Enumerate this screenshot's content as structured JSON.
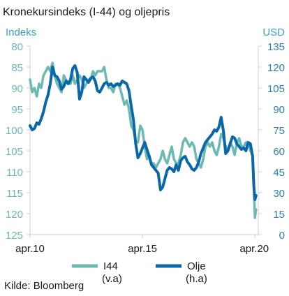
{
  "chart_data": {
    "type": "line",
    "title": "Kronekursindeks (I-44) og oljepris",
    "left_axis": {
      "label": "Indeks",
      "ticks": [
        80,
        85,
        90,
        95,
        100,
        105,
        110,
        115,
        120,
        125
      ],
      "range": [
        125,
        80
      ],
      "inverted": true,
      "color": "#6cb8b3"
    },
    "right_axis": {
      "label": "USD",
      "ticks": [
        0,
        15,
        30,
        45,
        60,
        75,
        90,
        105,
        120,
        135
      ],
      "range": [
        0,
        135
      ],
      "color": "#2b7fb0"
    },
    "x_axis": {
      "ticks": [
        "apr.10",
        "apr.15",
        "apr.20"
      ],
      "tick_values": [
        2010.25,
        2015.25,
        2020.25
      ],
      "range": [
        2010.25,
        2020.4
      ]
    },
    "grid": false,
    "legend_position": "bottom",
    "series": [
      {
        "name": "I44",
        "sub": "(v.a)",
        "axis": "left",
        "color": "#6cb8b3",
        "x": [
          2010.25,
          2010.35,
          2010.45,
          2010.55,
          2010.65,
          2010.75,
          2010.85,
          2010.95,
          2011.05,
          2011.15,
          2011.25,
          2011.35,
          2011.45,
          2011.55,
          2011.65,
          2011.75,
          2011.85,
          2011.95,
          2012.05,
          2012.15,
          2012.25,
          2012.35,
          2012.45,
          2012.55,
          2012.65,
          2012.75,
          2012.85,
          2012.95,
          2013.05,
          2013.15,
          2013.25,
          2013.35,
          2013.45,
          2013.55,
          2013.65,
          2013.75,
          2013.85,
          2013.95,
          2014.05,
          2014.15,
          2014.25,
          2014.35,
          2014.45,
          2014.55,
          2014.65,
          2014.75,
          2014.85,
          2014.95,
          2015.05,
          2015.15,
          2015.25,
          2015.35,
          2015.45,
          2015.55,
          2015.65,
          2015.75,
          2015.85,
          2015.95,
          2016.05,
          2016.15,
          2016.25,
          2016.35,
          2016.45,
          2016.55,
          2016.65,
          2016.75,
          2016.85,
          2016.95,
          2017.05,
          2017.15,
          2017.25,
          2017.35,
          2017.45,
          2017.55,
          2017.65,
          2017.75,
          2017.85,
          2017.95,
          2018.05,
          2018.15,
          2018.25,
          2018.35,
          2018.45,
          2018.55,
          2018.65,
          2018.75,
          2018.85,
          2018.95,
          2019.05,
          2019.15,
          2019.25,
          2019.35,
          2019.45,
          2019.55,
          2019.65,
          2019.75,
          2019.85,
          2019.95,
          2020.05,
          2020.15,
          2020.2,
          2020.25,
          2020.3
        ],
        "values": [
          88,
          91,
          90,
          92,
          89,
          90,
          87,
          86,
          85,
          86,
          84,
          87,
          89,
          90,
          91,
          87,
          88,
          89,
          89,
          87,
          89,
          88,
          87,
          88,
          90,
          89,
          88,
          88,
          86,
          87,
          86,
          86,
          86,
          85,
          88,
          90,
          90,
          91,
          89,
          89,
          90,
          92,
          94,
          93,
          95,
          99,
          100,
          103,
          103,
          99,
          100,
          104,
          107,
          106,
          108,
          108,
          109,
          108,
          107,
          105,
          107,
          108,
          106,
          104,
          107,
          108,
          108,
          106,
          103,
          102,
          103,
          104,
          103,
          104,
          107,
          108,
          109,
          107,
          104,
          103,
          104,
          103,
          105,
          106,
          104,
          101,
          102,
          104,
          105,
          103,
          104,
          106,
          103,
          102,
          104,
          104,
          103,
          103,
          105,
          106,
          113,
          121,
          119
        ]
      },
      {
        "name": "Olje",
        "sub": "(h.a)",
        "axis": "right",
        "color": "#0a68a8",
        "x": [
          2010.25,
          2010.35,
          2010.45,
          2010.55,
          2010.65,
          2010.75,
          2010.85,
          2010.95,
          2011.05,
          2011.15,
          2011.25,
          2011.35,
          2011.45,
          2011.55,
          2011.65,
          2011.75,
          2011.85,
          2011.95,
          2012.05,
          2012.15,
          2012.25,
          2012.35,
          2012.45,
          2012.55,
          2012.65,
          2012.75,
          2012.85,
          2012.95,
          2013.05,
          2013.15,
          2013.25,
          2013.35,
          2013.45,
          2013.55,
          2013.65,
          2013.75,
          2013.85,
          2013.95,
          2014.05,
          2014.15,
          2014.25,
          2014.35,
          2014.45,
          2014.55,
          2014.65,
          2014.75,
          2014.85,
          2014.95,
          2015.05,
          2015.15,
          2015.25,
          2015.35,
          2015.45,
          2015.55,
          2015.65,
          2015.75,
          2015.85,
          2015.95,
          2016.05,
          2016.15,
          2016.25,
          2016.35,
          2016.45,
          2016.55,
          2016.65,
          2016.75,
          2016.85,
          2016.95,
          2017.05,
          2017.15,
          2017.25,
          2017.35,
          2017.45,
          2017.55,
          2017.65,
          2017.75,
          2017.85,
          2017.95,
          2018.05,
          2018.15,
          2018.25,
          2018.35,
          2018.45,
          2018.55,
          2018.65,
          2018.75,
          2018.85,
          2018.95,
          2019.05,
          2019.15,
          2019.25,
          2019.35,
          2019.45,
          2019.55,
          2019.65,
          2019.75,
          2019.85,
          2019.95,
          2020.05,
          2020.15,
          2020.2,
          2020.25,
          2020.3
        ],
        "values": [
          78,
          75,
          76,
          80,
          79,
          83,
          88,
          95,
          100,
          108,
          120,
          114,
          113,
          110,
          104,
          106,
          110,
          108,
          111,
          119,
          121,
          116,
          97,
          102,
          113,
          111,
          109,
          112,
          113,
          110,
          103,
          102,
          105,
          108,
          109,
          107,
          108,
          106,
          107,
          108,
          107,
          110,
          109,
          108,
          103,
          92,
          82,
          65,
          55,
          58,
          62,
          66,
          61,
          56,
          50,
          48,
          46,
          44,
          32,
          34,
          40,
          46,
          48,
          47,
          45,
          50,
          46,
          53,
          55,
          56,
          52,
          50,
          47,
          46,
          48,
          52,
          58,
          62,
          66,
          68,
          70,
          72,
          75,
          74,
          77,
          84,
          74,
          58,
          60,
          65,
          70,
          69,
          65,
          63,
          61,
          62,
          60,
          66,
          65,
          56,
          35,
          25,
          28
        ]
      }
    ],
    "legend": {
      "i44_label": "I44",
      "i44_sub": "(v.a)",
      "olje_label": "Olje",
      "olje_sub": "(h.a)"
    },
    "source": "Kilde: Bloomberg"
  }
}
